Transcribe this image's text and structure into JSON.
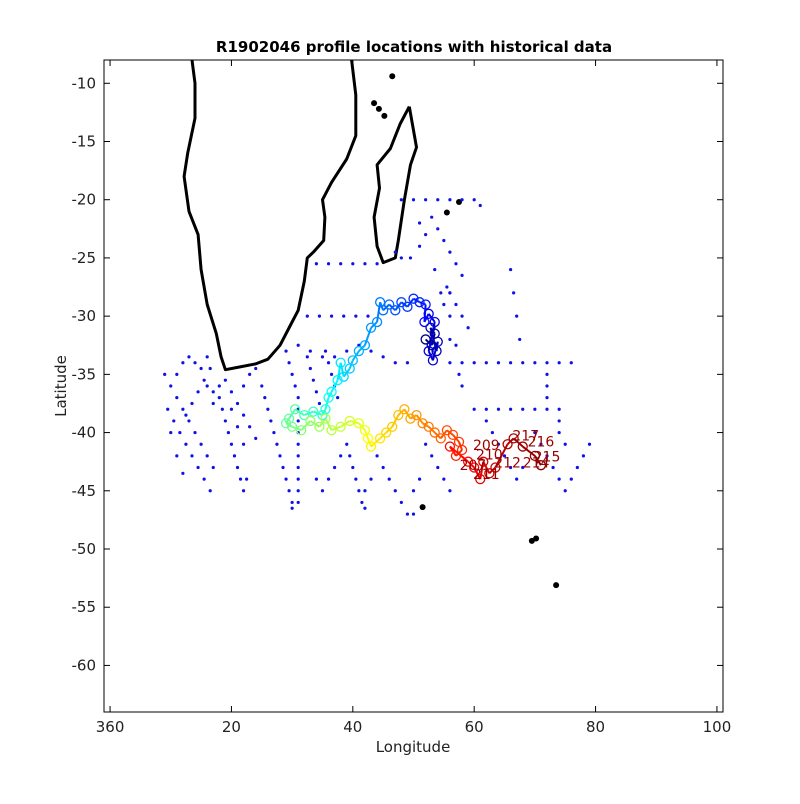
{
  "title": "R1902046 profile locations with historical data",
  "axes": {
    "xlabel": "Longitude",
    "ylabel": "Latitude",
    "xlim": [
      359,
      101
    ],
    "ylim": [
      -64,
      -8
    ],
    "x_ticks": [
      {
        "value": 360,
        "label": "360"
      },
      {
        "value": 20,
        "label": "20"
      },
      {
        "value": 40,
        "label": "40"
      },
      {
        "value": 60,
        "label": "60"
      },
      {
        "value": 80,
        "label": "80"
      },
      {
        "value": 100,
        "label": "100"
      }
    ],
    "y_ticks": [
      -10,
      -15,
      -20,
      -25,
      -30,
      -35,
      -40,
      -45,
      -50,
      -55,
      -60
    ]
  },
  "colors": {
    "historical": "#1010e8",
    "coast": "#000000",
    "path_colormap": "jet"
  },
  "map": {
    "africa_coast": [
      [
        13.5,
        -8
      ],
      [
        14,
        -10
      ],
      [
        14,
        -13
      ],
      [
        12.8,
        -16
      ],
      [
        12.2,
        -18
      ],
      [
        13,
        -21
      ],
      [
        14.5,
        -23
      ],
      [
        15,
        -26
      ],
      [
        16,
        -29
      ],
      [
        17.5,
        -31.5
      ],
      [
        18.3,
        -33.5
      ],
      [
        19,
        -34.6
      ],
      [
        21,
        -34.4
      ],
      [
        24,
        -34.1
      ],
      [
        26,
        -33.7
      ],
      [
        28,
        -32.5
      ],
      [
        30,
        -30.5
      ],
      [
        31,
        -29.5
      ],
      [
        32,
        -27
      ],
      [
        32.5,
        -25
      ],
      [
        33.5,
        -24.5
      ],
      [
        35.2,
        -23.5
      ],
      [
        35.4,
        -21.5
      ],
      [
        35,
        -20
      ],
      [
        36.5,
        -18.5
      ],
      [
        39,
        -16.5
      ],
      [
        40.5,
        -14.5
      ],
      [
        40.5,
        -11
      ],
      [
        39.8,
        -8
      ]
    ],
    "madagascar": [
      [
        49.3,
        -12
      ],
      [
        50.5,
        -15.5
      ],
      [
        49.5,
        -17
      ],
      [
        48.5,
        -20
      ],
      [
        47.5,
        -23.5
      ],
      [
        47,
        -25
      ],
      [
        45,
        -25.4
      ],
      [
        44,
        -24
      ],
      [
        43.5,
        -21.5
      ],
      [
        44.4,
        -19
      ],
      [
        44,
        -17
      ],
      [
        46.2,
        -15.6
      ],
      [
        47.8,
        -13.5
      ],
      [
        49.3,
        -12
      ]
    ],
    "islands": [
      {
        "lon": 57.5,
        "lat": -20.2
      },
      {
        "lon": 55.5,
        "lat": -21.1
      },
      {
        "lon": 69.5,
        "lat": -49.3
      },
      {
        "lon": 70.2,
        "lat": -49.1
      },
      {
        "lon": 73.5,
        "lat": -53.1
      },
      {
        "lon": 51.5,
        "lat": -46.4
      },
      {
        "lon": 43.5,
        "lat": -11.7
      },
      {
        "lon": 44.3,
        "lat": -12.2
      },
      {
        "lon": 45.2,
        "lat": -12.8
      },
      {
        "lon": 46.5,
        "lat": -9.4
      }
    ]
  },
  "chart_data": {
    "type": "scatter",
    "title": "R1902046 profile locations with historical data",
    "xlabel": "Longitude",
    "ylabel": "Latitude",
    "ylim": [
      -64,
      -8
    ],
    "grid": false,
    "float_track": [
      [
        52.0,
        -32.0
      ],
      [
        53.0,
        -32.5
      ],
      [
        53.5,
        -31.5
      ],
      [
        52.8,
        -31.0
      ],
      [
        53.8,
        -33.0
      ],
      [
        54.0,
        -32.2
      ],
      [
        53.2,
        -33.8
      ],
      [
        52.5,
        -33.0
      ],
      [
        53.5,
        -30.5
      ],
      [
        52.5,
        -29.8
      ],
      [
        51.8,
        -30.5
      ],
      [
        52.0,
        -29.0
      ],
      [
        51.0,
        -28.8
      ],
      [
        50.0,
        -28.5
      ],
      [
        49.0,
        -29.2
      ],
      [
        48.0,
        -28.8
      ],
      [
        47.0,
        -29.5
      ],
      [
        46.0,
        -29.0
      ],
      [
        45.0,
        -29.5
      ],
      [
        44.5,
        -28.8
      ],
      [
        44.0,
        -30.5
      ],
      [
        43.0,
        -31.0
      ],
      [
        42.0,
        -32.5
      ],
      [
        41.0,
        -33.0
      ],
      [
        40.0,
        -33.8
      ],
      [
        39.5,
        -34.5
      ],
      [
        38.5,
        -35.2
      ],
      [
        38.0,
        -34.0
      ],
      [
        37.5,
        -35.5
      ],
      [
        36.5,
        -36.5
      ],
      [
        36.0,
        -37.0
      ],
      [
        35.5,
        -38.0
      ],
      [
        35.0,
        -38.5
      ],
      [
        33.5,
        -38.2
      ],
      [
        32.0,
        -38.5
      ],
      [
        30.5,
        -38.0
      ],
      [
        29.5,
        -38.8
      ],
      [
        29.0,
        -39.2
      ],
      [
        30.0,
        -39.5
      ],
      [
        31.5,
        -39.8
      ],
      [
        33.0,
        -39.0
      ],
      [
        34.5,
        -39.5
      ],
      [
        35.5,
        -38.8
      ],
      [
        36.5,
        -39.8
      ],
      [
        38.0,
        -39.5
      ],
      [
        39.5,
        -39.0
      ],
      [
        41.0,
        -39.2
      ],
      [
        42.0,
        -39.8
      ],
      [
        42.5,
        -40.5
      ],
      [
        43.0,
        -41.2
      ],
      [
        44.5,
        -40.5
      ],
      [
        45.5,
        -40.0
      ],
      [
        46.5,
        -39.5
      ],
      [
        47.5,
        -38.5
      ],
      [
        48.5,
        -38.0
      ],
      [
        49.5,
        -38.8
      ],
      [
        50.5,
        -38.5
      ],
      [
        51.5,
        -39.2
      ],
      [
        52.5,
        -39.5
      ],
      [
        53.5,
        -40.0
      ],
      [
        54.5,
        -40.5
      ],
      [
        55.5,
        -39.8
      ],
      [
        56.5,
        -40.2
      ],
      [
        57.5,
        -40.8
      ],
      [
        58.0,
        -41.5
      ],
      [
        57.0,
        -42.0
      ],
      [
        56.0,
        -41.2
      ],
      [
        59.0,
        -42.5
      ],
      [
        60.0,
        -43.0
      ],
      [
        61.0,
        -44.0
      ],
      [
        61.5,
        -42.5
      ],
      [
        62.5,
        -43.5
      ],
      [
        63.5,
        -43.0
      ],
      [
        65.5,
        -41.0
      ],
      [
        66.5,
        -40.5
      ],
      [
        68.0,
        -41.2
      ],
      [
        70.0,
        -42.0
      ],
      [
        71.0,
        -42.8
      ]
    ],
    "track_labels": [
      {
        "text": "207",
        "lon": 59.8,
        "lat": -43.2
      },
      {
        "text": "209",
        "lon": 62.0,
        "lat": -41.5
      },
      {
        "text": "210",
        "lon": 62.5,
        "lat": -42.3
      },
      {
        "text": "211",
        "lon": 62.0,
        "lat": -44.0
      },
      {
        "text": "212",
        "lon": 65.5,
        "lat": -43.0
      },
      {
        "text": "214",
        "lon": 70.2,
        "lat": -43.0
      },
      {
        "text": "215",
        "lon": 72.0,
        "lat": -42.5
      },
      {
        "text": "216",
        "lon": 71.0,
        "lat": -41.2
      },
      {
        "text": "217",
        "lon": 68.5,
        "lat": -40.7
      }
    ],
    "historical_points": [
      [
        32.5,
        -33.5
      ],
      [
        33,
        -34.5
      ],
      [
        33.5,
        -35.5
      ],
      [
        34,
        -36.5
      ],
      [
        34.5,
        -37.5
      ],
      [
        35.5,
        -33
      ],
      [
        36,
        -34
      ],
      [
        36.5,
        -35
      ],
      [
        37,
        -36
      ],
      [
        37.5,
        -37
      ],
      [
        29,
        -33
      ],
      [
        29.5,
        -34
      ],
      [
        30,
        -35
      ],
      [
        30.5,
        -36
      ],
      [
        31,
        -37
      ],
      [
        31,
        -38
      ],
      [
        31,
        -39
      ],
      [
        31,
        -40
      ],
      [
        31,
        -41
      ],
      [
        31,
        -42
      ],
      [
        31,
        -43
      ],
      [
        31,
        -44
      ],
      [
        31,
        -45
      ],
      [
        31,
        -46
      ],
      [
        25,
        -36
      ],
      [
        25.5,
        -37
      ],
      [
        26,
        -38
      ],
      [
        26.5,
        -39
      ],
      [
        27,
        -40
      ],
      [
        27.5,
        -41
      ],
      [
        28,
        -42
      ],
      [
        28.5,
        -43
      ],
      [
        29,
        -44
      ],
      [
        29.5,
        -45
      ],
      [
        30,
        -46
      ],
      [
        30,
        -46.5
      ],
      [
        18,
        -37
      ],
      [
        18.5,
        -38
      ],
      [
        19,
        -39
      ],
      [
        19.5,
        -40
      ],
      [
        20,
        -41
      ],
      [
        20.5,
        -42
      ],
      [
        21,
        -43
      ],
      [
        21.5,
        -44
      ],
      [
        22,
        -45
      ],
      [
        22.5,
        -44
      ],
      [
        9,
        -35
      ],
      [
        10,
        -36
      ],
      [
        11,
        -37
      ],
      [
        12,
        -38
      ],
      [
        13,
        -39
      ],
      [
        14,
        -40
      ],
      [
        15,
        -41
      ],
      [
        16,
        -42
      ],
      [
        17,
        -43
      ],
      [
        11,
        -35
      ],
      [
        12,
        -34
      ],
      [
        13,
        -33.5
      ],
      [
        14,
        -34
      ],
      [
        15,
        -34.5
      ],
      [
        16,
        -33.5
      ],
      [
        16.5,
        -34.5
      ],
      [
        15.5,
        -35.5
      ],
      [
        14.5,
        -36.5
      ],
      [
        13.5,
        -37.5
      ],
      [
        12.5,
        -38.5
      ],
      [
        16,
        -36
      ],
      [
        17,
        -36.5
      ],
      [
        18,
        -36
      ],
      [
        17,
        -37.5
      ],
      [
        9.5,
        -38
      ],
      [
        10.5,
        -39
      ],
      [
        11.5,
        -40
      ],
      [
        12.5,
        -41
      ],
      [
        13.5,
        -42
      ],
      [
        14.5,
        -43
      ],
      [
        15.5,
        -44
      ],
      [
        16.5,
        -45
      ],
      [
        10,
        -40
      ],
      [
        11,
        -42
      ],
      [
        12,
        -43.5
      ],
      [
        19,
        -35.5
      ],
      [
        20,
        -36.5
      ],
      [
        21,
        -37.5
      ],
      [
        22,
        -38.5
      ],
      [
        23,
        -39.5
      ],
      [
        24,
        -40.5
      ],
      [
        22,
        -36
      ],
      [
        23,
        -35
      ],
      [
        24,
        -34.5
      ],
      [
        20,
        -38
      ],
      [
        21,
        -39.5
      ],
      [
        22,
        -41
      ],
      [
        39,
        -41
      ],
      [
        39.5,
        -42
      ],
      [
        40,
        -43
      ],
      [
        40.5,
        -44
      ],
      [
        41,
        -45
      ],
      [
        41.5,
        -46
      ],
      [
        42,
        -46.5
      ],
      [
        38,
        -42
      ],
      [
        37,
        -43
      ],
      [
        36,
        -44
      ],
      [
        35,
        -45
      ],
      [
        34,
        -44
      ],
      [
        44,
        -42
      ],
      [
        45,
        -43
      ],
      [
        46,
        -44
      ],
      [
        47,
        -45
      ],
      [
        48,
        -46
      ],
      [
        49,
        -47
      ],
      [
        50,
        -47
      ],
      [
        43,
        -44
      ],
      [
        42,
        -45
      ],
      [
        34,
        -25.5
      ],
      [
        36,
        -25.5
      ],
      [
        38,
        -25.5
      ],
      [
        40,
        -25.5
      ],
      [
        42,
        -25.5
      ],
      [
        44,
        -25.5
      ],
      [
        32.5,
        -30
      ],
      [
        34.5,
        -30
      ],
      [
        36.5,
        -30
      ],
      [
        38.5,
        -30
      ],
      [
        40.5,
        -30
      ],
      [
        42.5,
        -30
      ],
      [
        31,
        -32.5
      ],
      [
        33,
        -33
      ],
      [
        35,
        -33.5
      ],
      [
        37,
        -33.5
      ],
      [
        39,
        -33
      ],
      [
        41,
        -32.5
      ],
      [
        43,
        -33
      ],
      [
        45,
        -33.5
      ],
      [
        47,
        -34
      ],
      [
        49,
        -34
      ],
      [
        48,
        -20
      ],
      [
        50,
        -20
      ],
      [
        52,
        -20
      ],
      [
        54,
        -20
      ],
      [
        56,
        -20
      ],
      [
        58,
        -20
      ],
      [
        60,
        -20
      ],
      [
        47,
        -24.5
      ],
      [
        48,
        -25
      ],
      [
        49.5,
        -25
      ],
      [
        51,
        -24
      ],
      [
        51,
        -22
      ],
      [
        52,
        -23
      ],
      [
        53,
        -21.5
      ],
      [
        54,
        -22.5
      ],
      [
        55,
        -23.5
      ],
      [
        56,
        -24.5
      ],
      [
        57,
        -25.5
      ],
      [
        58,
        -26.5
      ],
      [
        53.5,
        -26
      ],
      [
        54.5,
        -28
      ],
      [
        55,
        -29
      ],
      [
        55.5,
        -27.5
      ],
      [
        56,
        -28
      ],
      [
        57,
        -29
      ],
      [
        58,
        -30
      ],
      [
        59,
        -31
      ],
      [
        56,
        -34
      ],
      [
        58,
        -34
      ],
      [
        60,
        -34
      ],
      [
        62,
        -34
      ],
      [
        64,
        -34
      ],
      [
        66,
        -34
      ],
      [
        68,
        -34
      ],
      [
        70,
        -34
      ],
      [
        72,
        -34
      ],
      [
        74,
        -34
      ],
      [
        76,
        -34
      ],
      [
        56,
        -32
      ],
      [
        56,
        -30
      ],
      [
        56,
        -28
      ],
      [
        57,
        -32.5
      ],
      [
        57.5,
        -35
      ],
      [
        58,
        -36
      ],
      [
        60,
        -38
      ],
      [
        62,
        -38
      ],
      [
        64,
        -38
      ],
      [
        66,
        -38
      ],
      [
        68,
        -38
      ],
      [
        70,
        -38
      ],
      [
        72,
        -38
      ],
      [
        74,
        -38
      ],
      [
        62,
        -39
      ],
      [
        63,
        -40
      ],
      [
        64,
        -41
      ],
      [
        65,
        -42
      ],
      [
        66,
        -43
      ],
      [
        67,
        -44
      ],
      [
        68,
        -43
      ],
      [
        70,
        -40
      ],
      [
        71,
        -41
      ],
      [
        72,
        -42
      ],
      [
        73,
        -43
      ],
      [
        74,
        -44
      ],
      [
        75,
        -45
      ],
      [
        76,
        -44
      ],
      [
        77,
        -43
      ],
      [
        78,
        -42
      ],
      [
        79,
        -41
      ],
      [
        72,
        -35
      ],
      [
        72,
        -36
      ],
      [
        72,
        -37
      ],
      [
        74,
        -39
      ],
      [
        74,
        -40
      ],
      [
        75,
        -41
      ],
      [
        66,
        -26
      ],
      [
        66.5,
        -28
      ],
      [
        67,
        -30
      ],
      [
        67.5,
        -32
      ],
      [
        61,
        -20.5
      ],
      [
        52,
        -41
      ],
      [
        53,
        -42
      ],
      [
        54,
        -43
      ],
      [
        55,
        -44
      ],
      [
        56,
        -45
      ],
      [
        50,
        -45
      ],
      [
        51,
        -44
      ]
    ]
  }
}
